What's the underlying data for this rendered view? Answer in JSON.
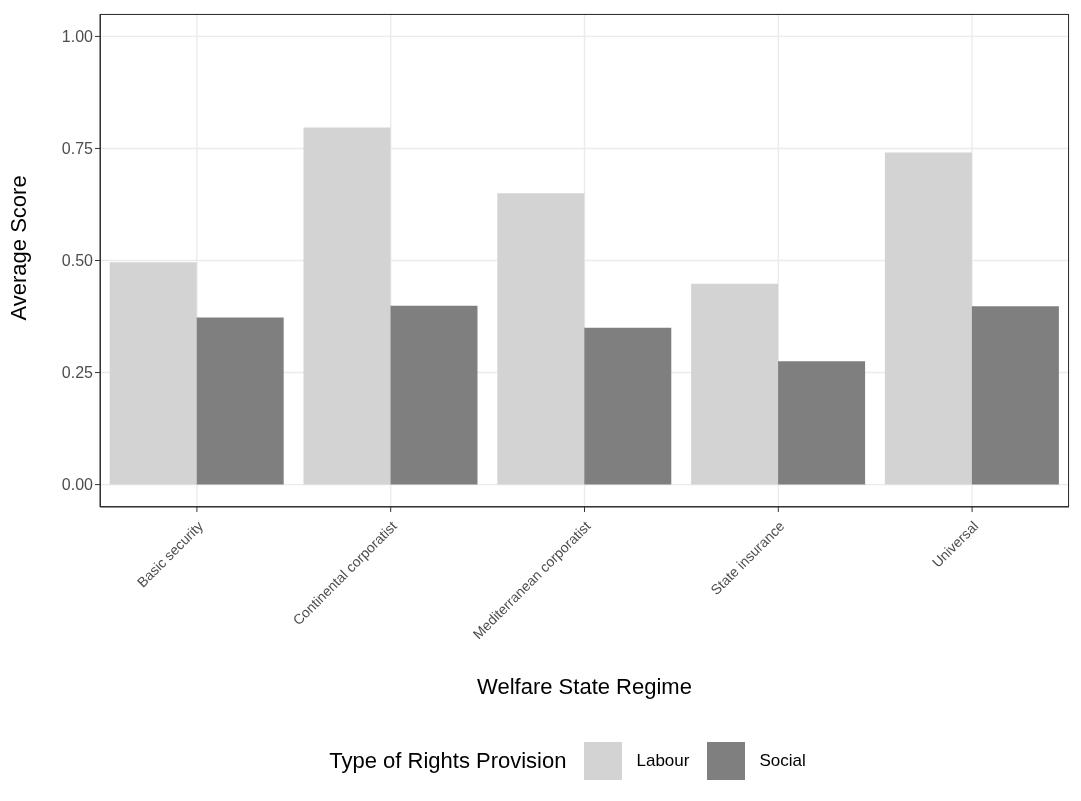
{
  "chart_data": {
    "type": "bar",
    "xlabel": "Welfare State Regime",
    "ylabel": "Average Score",
    "legend_title": "Type of Rights Provision",
    "categories": [
      "Basic security",
      "Continental corporatist",
      "Mediterranean corporatist",
      "State insurance",
      "Universal"
    ],
    "series": [
      {
        "name": "Labour",
        "color": "#d3d3d3",
        "values": [
          0.496,
          0.797,
          0.65,
          0.448,
          0.741
        ]
      },
      {
        "name": "Social",
        "color": "#7f7f7f",
        "values": [
          0.373,
          0.399,
          0.35,
          0.275,
          0.398
        ]
      }
    ],
    "ylim": [
      -0.05,
      1.05
    ],
    "yticks": [
      {
        "value": 0,
        "label": "0.00"
      },
      {
        "value": 0.25,
        "label": "0.25"
      },
      {
        "value": 0.5,
        "label": "0.50"
      },
      {
        "value": 0.75,
        "label": "0.75"
      },
      {
        "value": 1,
        "label": "1.00"
      }
    ],
    "grid": true,
    "legend": "bottom"
  }
}
